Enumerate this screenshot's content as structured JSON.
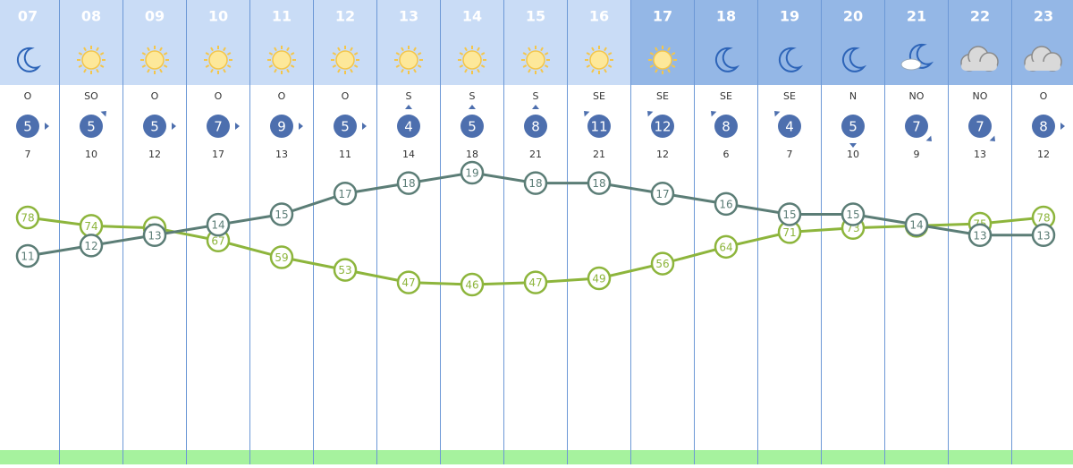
{
  "hours": [
    "07",
    "08",
    "09",
    "10",
    "11",
    "12",
    "13",
    "14",
    "15",
    "16",
    "17",
    "18",
    "19",
    "20",
    "21",
    "22",
    "23"
  ],
  "wind_direction": [
    "O",
    "SO",
    "O",
    "O",
    "O",
    "O",
    "S",
    "S",
    "S",
    "SE",
    "SE",
    "SE",
    "SE",
    "N",
    "NO",
    "NO",
    "O"
  ],
  "wind_speed": [
    5,
    5,
    5,
    7,
    9,
    5,
    4,
    5,
    8,
    11,
    12,
    8,
    4,
    5,
    7,
    7,
    8
  ],
  "gusts": [
    7,
    10,
    12,
    17,
    13,
    11,
    14,
    18,
    21,
    21,
    12,
    6,
    7,
    10,
    9,
    13,
    12
  ],
  "temperature": [
    11,
    12,
    13,
    14,
    15,
    17,
    18,
    19,
    18,
    18,
    17,
    16,
    15,
    15,
    14,
    13,
    13
  ],
  "humidity": [
    78,
    74,
    73,
    67,
    59,
    53,
    47,
    46,
    47,
    49,
    56,
    64,
    71,
    73,
    74,
    75,
    78
  ]
}
